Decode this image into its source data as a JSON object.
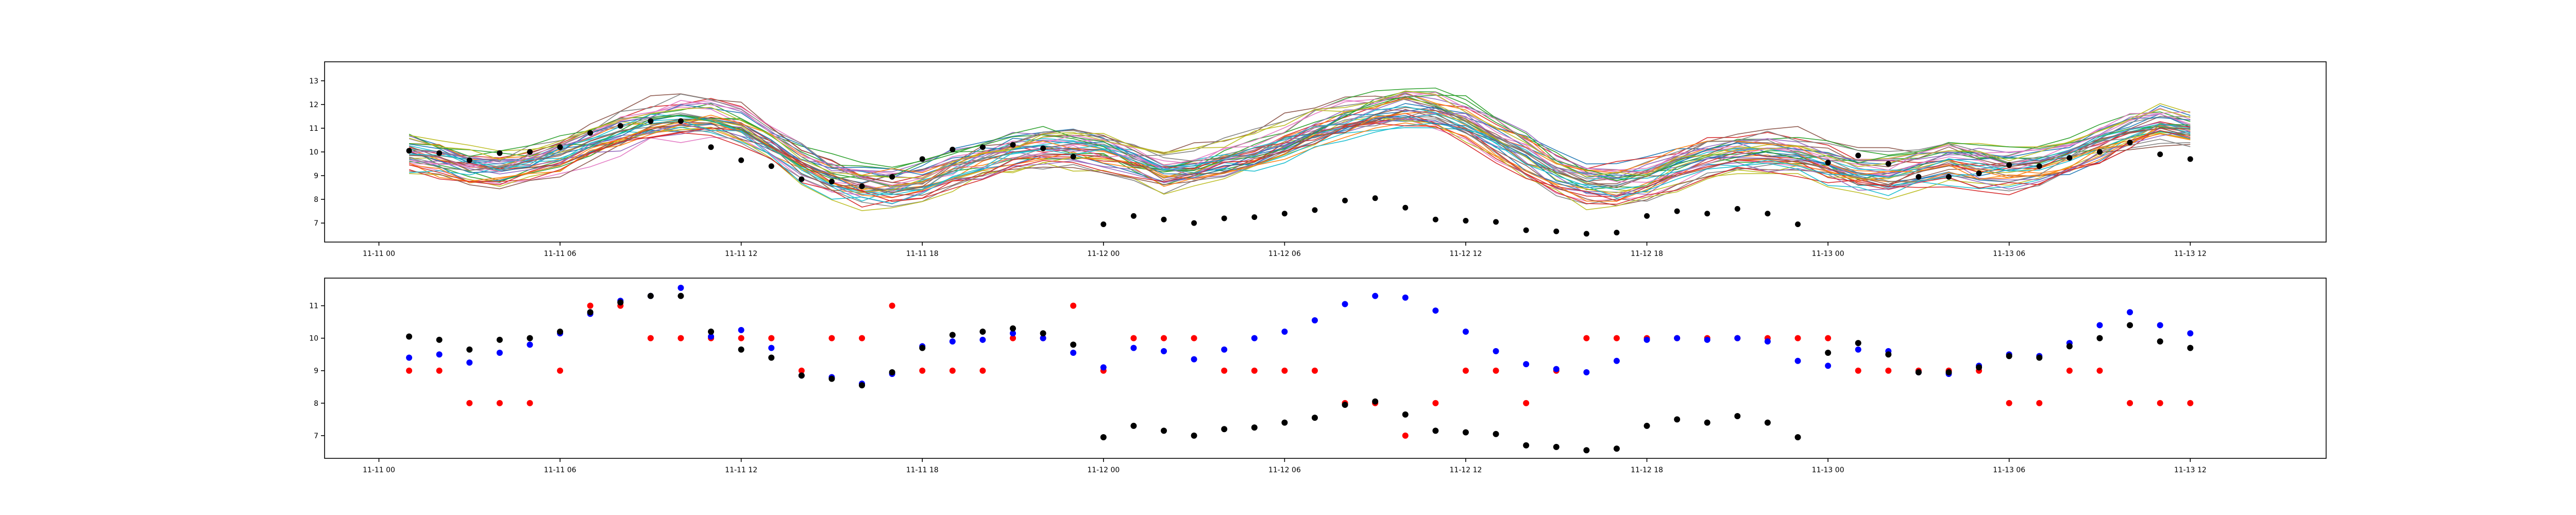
{
  "chart_data": [
    {
      "type": "line",
      "x_axis": {
        "type": "datetime",
        "range": [
          "2023-11-10T22:12",
          "2023-11-13T16:30"
        ],
        "ticks": [
          "2023-11-11T00:00",
          "2023-11-11T06:00",
          "2023-11-11T12:00",
          "2023-11-11T18:00",
          "2023-11-12T00:00",
          "2023-11-12T06:00",
          "2023-11-12T12:00",
          "2023-11-12T18:00",
          "2023-11-13T00:00",
          "2023-11-13T06:00",
          "2023-11-13T12:00"
        ],
        "tick_labels": [
          "11-11 00",
          "11-11 06",
          "11-11 12",
          "11-11 18",
          "11-12 00",
          "11-12 06",
          "11-12 12",
          "11-12 18",
          "11-13 00",
          "11-13 06",
          "11-13 12"
        ]
      },
      "y_axis": {
        "ylim": [
          6.2,
          13.8
        ],
        "ticks": [
          7,
          8,
          9,
          10,
          11,
          12,
          13
        ],
        "tick_labels": [
          "7",
          "8",
          "9",
          "10",
          "11",
          "12",
          "13"
        ]
      },
      "grid": false,
      "legend": "none",
      "ensemble": {
        "member_count": 40,
        "colors": [
          "#1f77b4",
          "#ff7f0e",
          "#2ca02c",
          "#d62728",
          "#9467bd",
          "#8c564b",
          "#e377c2",
          "#7f7f7f",
          "#bcbd22",
          "#17becf"
        ],
        "x": [
          "2023-11-11T01:00",
          "2023-11-11T02:00",
          "2023-11-11T03:00",
          "2023-11-11T04:00",
          "2023-11-11T05:00",
          "2023-11-11T06:00",
          "2023-11-11T07:00",
          "2023-11-11T08:00",
          "2023-11-11T09:00",
          "2023-11-11T10:00",
          "2023-11-11T11:00",
          "2023-11-11T12:00",
          "2023-11-11T13:00",
          "2023-11-11T14:00",
          "2023-11-11T15:00",
          "2023-11-11T16:00",
          "2023-11-11T17:00",
          "2023-11-11T18:00",
          "2023-11-11T19:00",
          "2023-11-11T20:00",
          "2023-11-11T21:00",
          "2023-11-11T22:00",
          "2023-11-11T23:00",
          "2023-11-12T00:00",
          "2023-11-12T01:00",
          "2023-11-12T02:00",
          "2023-11-12T03:00",
          "2023-11-12T04:00",
          "2023-11-12T05:00",
          "2023-11-12T06:00",
          "2023-11-12T07:00",
          "2023-11-12T08:00",
          "2023-11-12T09:00",
          "2023-11-12T10:00",
          "2023-11-12T11:00",
          "2023-11-12T12:00",
          "2023-11-12T13:00",
          "2023-11-12T14:00",
          "2023-11-12T15:00",
          "2023-11-12T16:00",
          "2023-11-12T17:00",
          "2023-11-12T18:00",
          "2023-11-12T19:00",
          "2023-11-12T20:00",
          "2023-11-12T21:00",
          "2023-11-12T22:00",
          "2023-11-12T23:00",
          "2023-11-13T00:00",
          "2023-11-13T01:00",
          "2023-11-13T02:00",
          "2023-11-13T03:00",
          "2023-11-13T04:00",
          "2023-11-13T05:00",
          "2023-11-13T06:00",
          "2023-11-13T07:00",
          "2023-11-13T08:00",
          "2023-11-13T09:00",
          "2023-11-13T10:00",
          "2023-11-13T11:00",
          "2023-11-13T12:00"
        ],
        "mean": [
          9.9,
          9.6,
          9.3,
          9.2,
          9.4,
          9.8,
          10.3,
          10.8,
          11.2,
          11.4,
          11.4,
          11.1,
          10.4,
          9.6,
          9.0,
          8.7,
          8.6,
          8.8,
          9.3,
          9.7,
          10.0,
          10.2,
          10.2,
          10.0,
          9.6,
          9.2,
          9.3,
          9.6,
          9.9,
          10.4,
          10.9,
          11.3,
          11.6,
          11.8,
          11.7,
          11.3,
          10.6,
          9.9,
          9.2,
          8.8,
          8.7,
          8.9,
          9.4,
          9.8,
          10.0,
          10.0,
          9.8,
          9.5,
          9.1,
          9.0,
          9.3,
          9.5,
          9.3,
          9.2,
          9.4,
          9.8,
          10.3,
          10.8,
          11.2,
          11.0
        ],
        "spread": [
          0.6,
          0.6,
          0.6,
          0.6,
          0.6,
          0.7,
          0.7,
          0.7,
          0.7,
          0.8,
          0.8,
          0.8,
          0.8,
          0.8,
          0.8,
          0.8,
          0.8,
          0.8,
          0.8,
          0.8,
          0.8,
          0.8,
          0.8,
          0.8,
          0.8,
          0.8,
          0.8,
          0.8,
          0.9,
          0.9,
          0.9,
          0.9,
          0.9,
          0.9,
          0.9,
          0.9,
          0.9,
          0.9,
          0.9,
          0.9,
          0.9,
          0.9,
          0.9,
          0.9,
          0.9,
          0.9,
          0.9,
          0.9,
          0.9,
          0.9,
          0.9,
          0.9,
          0.9,
          0.9,
          0.9,
          0.9,
          0.9,
          0.9,
          0.9,
          0.9
        ]
      },
      "observed": {
        "color": "#000000",
        "x": [
          "2023-11-11T01:00",
          "2023-11-11T02:00",
          "2023-11-11T03:00",
          "2023-11-11T04:00",
          "2023-11-11T05:00",
          "2023-11-11T06:00",
          "2023-11-11T07:00",
          "2023-11-11T08:00",
          "2023-11-11T09:00",
          "2023-11-11T10:00",
          "2023-11-11T11:00",
          "2023-11-11T12:00",
          "2023-11-11T13:00",
          "2023-11-11T14:00",
          "2023-11-11T15:00",
          "2023-11-11T16:00",
          "2023-11-11T17:00",
          "2023-11-11T18:00",
          "2023-11-11T19:00",
          "2023-11-11T20:00",
          "2023-11-11T21:00",
          "2023-11-11T22:00",
          "2023-11-11T23:00",
          "2023-11-12T00:00",
          "2023-11-12T01:00",
          "2023-11-12T02:00",
          "2023-11-12T03:00",
          "2023-11-12T04:00",
          "2023-11-12T05:00",
          "2023-11-12T06:00",
          "2023-11-12T07:00",
          "2023-11-12T08:00",
          "2023-11-12T09:00",
          "2023-11-12T10:00",
          "2023-11-12T11:00",
          "2023-11-12T12:00",
          "2023-11-12T13:00",
          "2023-11-12T14:00",
          "2023-11-12T15:00",
          "2023-11-12T16:00",
          "2023-11-12T17:00",
          "2023-11-12T18:00",
          "2023-11-12T19:00",
          "2023-11-12T20:00",
          "2023-11-12T21:00",
          "2023-11-12T22:00",
          "2023-11-12T23:00",
          "2023-11-13T00:00",
          "2023-11-13T01:00",
          "2023-11-13T02:00",
          "2023-11-13T03:00",
          "2023-11-13T04:00",
          "2023-11-13T05:00",
          "2023-11-13T06:00",
          "2023-11-13T07:00",
          "2023-11-13T08:00",
          "2023-11-13T09:00",
          "2023-11-13T10:00",
          "2023-11-13T11:00",
          "2023-11-13T12:00"
        ],
        "y": [
          10.05,
          9.95,
          9.65,
          9.95,
          10.0,
          10.2,
          10.8,
          11.1,
          11.3,
          11.3,
          10.2,
          9.65,
          9.4,
          8.85,
          8.75,
          8.55,
          8.95,
          9.7,
          10.1,
          10.2,
          10.3,
          10.15,
          9.8,
          6.95,
          7.3,
          7.15,
          7.0,
          7.2,
          7.25,
          7.4,
          7.55,
          7.95,
          8.05,
          7.65,
          7.15,
          7.1,
          7.05,
          6.7,
          6.65,
          6.55,
          6.6,
          7.3,
          7.5,
          7.4,
          7.6,
          7.4,
          6.95,
          9.55,
          9.85,
          9.5,
          8.95,
          8.95,
          9.1,
          9.45,
          9.4,
          9.75,
          10.0,
          10.4,
          9.9,
          9.7
        ]
      }
    },
    {
      "type": "scatter",
      "x_axis": {
        "type": "datetime",
        "range": [
          "2023-11-10T22:12",
          "2023-11-13T16:30"
        ],
        "ticks": [
          "2023-11-11T00:00",
          "2023-11-11T06:00",
          "2023-11-11T12:00",
          "2023-11-11T18:00",
          "2023-11-12T00:00",
          "2023-11-12T06:00",
          "2023-11-12T12:00",
          "2023-11-12T18:00",
          "2023-11-13T00:00",
          "2023-11-13T06:00",
          "2023-11-13T12:00"
        ],
        "tick_labels": [
          "11-11 00",
          "11-11 06",
          "11-11 12",
          "11-11 18",
          "11-12 00",
          "11-12 06",
          "11-12 12",
          "11-12 18",
          "11-13 00",
          "11-13 06",
          "11-13 12"
        ]
      },
      "y_axis": {
        "ylim": [
          6.3,
          11.85
        ],
        "ticks": [
          7,
          8,
          9,
          10,
          11
        ],
        "tick_labels": [
          "7",
          "8",
          "9",
          "10",
          "11"
        ]
      },
      "grid": false,
      "legend": "none",
      "series": [
        {
          "color": "#ff0000",
          "x": [
            "2023-11-11T01:00",
            "2023-11-11T02:00",
            "2023-11-11T03:00",
            "2023-11-11T04:00",
            "2023-11-11T05:00",
            "2023-11-11T06:00",
            "2023-11-11T07:00",
            "2023-11-11T08:00",
            "2023-11-11T09:00",
            "2023-11-11T10:00",
            "2023-11-11T11:00",
            "2023-11-11T12:00",
            "2023-11-11T13:00",
            "2023-11-11T14:00",
            "2023-11-11T15:00",
            "2023-11-11T16:00",
            "2023-11-11T17:00",
            "2023-11-11T18:00",
            "2023-11-11T19:00",
            "2023-11-11T20:00",
            "2023-11-11T21:00",
            "2023-11-11T22:00",
            "2023-11-11T23:00",
            "2023-11-12T00:00",
            "2023-11-12T01:00",
            "2023-11-12T02:00",
            "2023-11-12T03:00",
            "2023-11-12T04:00",
            "2023-11-12T05:00",
            "2023-11-12T06:00",
            "2023-11-12T07:00",
            "2023-11-12T08:00",
            "2023-11-12T09:00",
            "2023-11-12T10:00",
            "2023-11-12T11:00",
            "2023-11-12T12:00",
            "2023-11-12T13:00",
            "2023-11-12T14:00",
            "2023-11-12T15:00",
            "2023-11-12T16:00",
            "2023-11-12T17:00",
            "2023-11-12T18:00",
            "2023-11-12T19:00",
            "2023-11-12T20:00",
            "2023-11-12T21:00",
            "2023-11-12T22:00",
            "2023-11-12T23:00",
            "2023-11-13T00:00",
            "2023-11-13T01:00",
            "2023-11-13T02:00",
            "2023-11-13T03:00",
            "2023-11-13T04:00",
            "2023-11-13T05:00",
            "2023-11-13T06:00",
            "2023-11-13T07:00",
            "2023-11-13T08:00",
            "2023-11-13T09:00",
            "2023-11-13T10:00",
            "2023-11-13T11:00",
            "2023-11-13T12:00"
          ],
          "y": [
            9,
            9,
            8,
            8,
            8,
            9,
            11,
            11,
            10,
            10,
            10,
            10,
            10,
            9,
            10,
            10,
            11,
            9,
            9,
            9,
            10,
            10,
            11,
            9,
            10,
            10,
            10,
            9,
            9,
            9,
            9,
            8,
            8,
            7,
            8,
            9,
            9,
            8,
            9,
            10,
            10,
            10,
            10,
            10,
            10,
            10,
            10,
            10,
            9,
            9,
            9,
            9,
            9,
            8,
            8,
            9,
            9,
            8,
            8,
            8
          ]
        },
        {
          "color": "#0000ff",
          "x": [
            "2023-11-11T01:00",
            "2023-11-11T02:00",
            "2023-11-11T03:00",
            "2023-11-11T04:00",
            "2023-11-11T05:00",
            "2023-11-11T06:00",
            "2023-11-11T07:00",
            "2023-11-11T08:00",
            "2023-11-11T09:00",
            "2023-11-11T10:00",
            "2023-11-11T11:00",
            "2023-11-11T12:00",
            "2023-11-11T13:00",
            "2023-11-11T14:00",
            "2023-11-11T15:00",
            "2023-11-11T16:00",
            "2023-11-11T17:00",
            "2023-11-11T18:00",
            "2023-11-11T19:00",
            "2023-11-11T20:00",
            "2023-11-11T21:00",
            "2023-11-11T22:00",
            "2023-11-11T23:00",
            "2023-11-12T00:00",
            "2023-11-12T01:00",
            "2023-11-12T02:00",
            "2023-11-12T03:00",
            "2023-11-12T04:00",
            "2023-11-12T05:00",
            "2023-11-12T06:00",
            "2023-11-12T07:00",
            "2023-11-12T08:00",
            "2023-11-12T09:00",
            "2023-11-12T10:00",
            "2023-11-12T11:00",
            "2023-11-12T12:00",
            "2023-11-12T13:00",
            "2023-11-12T14:00",
            "2023-11-12T15:00",
            "2023-11-12T16:00",
            "2023-11-12T17:00",
            "2023-11-12T18:00",
            "2023-11-12T19:00",
            "2023-11-12T20:00",
            "2023-11-12T21:00",
            "2023-11-12T22:00",
            "2023-11-12T23:00",
            "2023-11-13T00:00",
            "2023-11-13T01:00",
            "2023-11-13T02:00",
            "2023-11-13T03:00",
            "2023-11-13T04:00",
            "2023-11-13T05:00",
            "2023-11-13T06:00",
            "2023-11-13T07:00",
            "2023-11-13T08:00",
            "2023-11-13T09:00",
            "2023-11-13T10:00",
            "2023-11-13T11:00",
            "2023-11-13T12:00"
          ],
          "y": [
            9.4,
            9.5,
            9.25,
            9.55,
            9.8,
            10.15,
            10.75,
            11.15,
            11.3,
            11.55,
            10.05,
            10.25,
            9.7,
            8.85,
            8.8,
            8.6,
            8.9,
            9.75,
            9.9,
            9.95,
            10.15,
            10.0,
            9.55,
            9.1,
            9.7,
            9.6,
            9.35,
            9.65,
            10.0,
            10.2,
            10.55,
            11.05,
            11.3,
            11.25,
            10.85,
            10.2,
            9.6,
            9.2,
            9.05,
            8.95,
            9.3,
            9.95,
            10.0,
            9.95,
            10.0,
            9.9,
            9.3,
            9.15,
            9.65,
            9.6,
            8.95,
            8.9,
            9.15,
            9.5,
            9.45,
            9.85,
            10.4,
            10.8,
            10.4,
            10.15
          ]
        },
        {
          "color": "#000000",
          "x": [
            "2023-11-11T01:00",
            "2023-11-11T02:00",
            "2023-11-11T03:00",
            "2023-11-11T04:00",
            "2023-11-11T05:00",
            "2023-11-11T06:00",
            "2023-11-11T07:00",
            "2023-11-11T08:00",
            "2023-11-11T09:00",
            "2023-11-11T10:00",
            "2023-11-11T11:00",
            "2023-11-11T12:00",
            "2023-11-11T13:00",
            "2023-11-11T14:00",
            "2023-11-11T15:00",
            "2023-11-11T16:00",
            "2023-11-11T17:00",
            "2023-11-11T18:00",
            "2023-11-11T19:00",
            "2023-11-11T20:00",
            "2023-11-11T21:00",
            "2023-11-11T22:00",
            "2023-11-11T23:00",
            "2023-11-12T00:00",
            "2023-11-12T01:00",
            "2023-11-12T02:00",
            "2023-11-12T03:00",
            "2023-11-12T04:00",
            "2023-11-12T05:00",
            "2023-11-12T06:00",
            "2023-11-12T07:00",
            "2023-11-12T08:00",
            "2023-11-12T09:00",
            "2023-11-12T10:00",
            "2023-11-12T11:00",
            "2023-11-12T12:00",
            "2023-11-12T13:00",
            "2023-11-12T14:00",
            "2023-11-12T15:00",
            "2023-11-12T16:00",
            "2023-11-12T17:00",
            "2023-11-12T18:00",
            "2023-11-12T19:00",
            "2023-11-12T20:00",
            "2023-11-12T21:00",
            "2023-11-12T22:00",
            "2023-11-12T23:00",
            "2023-11-13T00:00",
            "2023-11-13T01:00",
            "2023-11-13T02:00",
            "2023-11-13T03:00",
            "2023-11-13T04:00",
            "2023-11-13T05:00",
            "2023-11-13T06:00",
            "2023-11-13T07:00",
            "2023-11-13T08:00",
            "2023-11-13T09:00",
            "2023-11-13T10:00",
            "2023-11-13T11:00",
            "2023-11-13T12:00"
          ],
          "y": [
            10.05,
            9.95,
            9.65,
            9.95,
            10.0,
            10.2,
            10.8,
            11.1,
            11.3,
            11.3,
            10.2,
            9.65,
            9.4,
            8.85,
            8.75,
            8.55,
            8.95,
            9.7,
            10.1,
            10.2,
            10.3,
            10.15,
            9.8,
            6.95,
            7.3,
            7.15,
            7.0,
            7.2,
            7.25,
            7.4,
            7.55,
            7.95,
            8.05,
            7.65,
            7.15,
            7.1,
            7.05,
            6.7,
            6.65,
            6.55,
            6.6,
            7.3,
            7.5,
            7.4,
            7.6,
            7.4,
            6.95,
            9.55,
            9.85,
            9.5,
            8.95,
            8.95,
            9.1,
            9.45,
            9.4,
            9.75,
            10.0,
            10.4,
            9.9,
            9.7
          ]
        }
      ]
    }
  ]
}
